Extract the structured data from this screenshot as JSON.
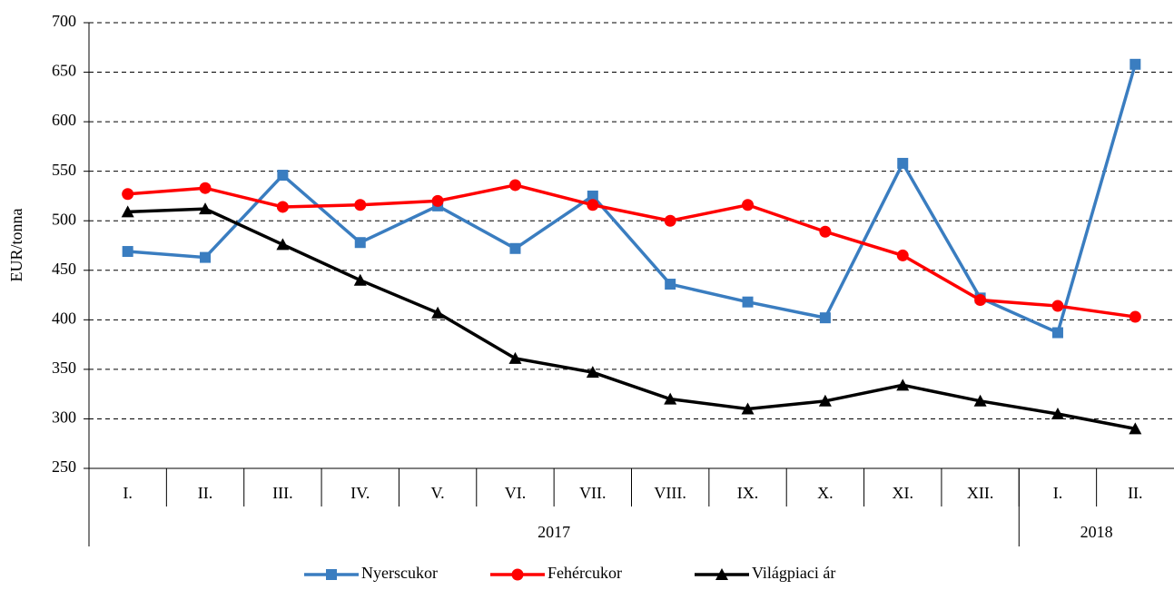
{
  "chart_data": {
    "type": "line",
    "y_label": "EUR/tonna",
    "categories": [
      "I.",
      "II.",
      "III.",
      "IV.",
      "V.",
      "VI.",
      "VII.",
      "VIII.",
      "IX.",
      "X.",
      "XI.",
      "XII.",
      "I.",
      "II."
    ],
    "year_groups": [
      {
        "label": "2017",
        "span": 12
      },
      {
        "label": "2018",
        "span": 2
      }
    ],
    "series": [
      {
        "name": "Nyerscukor",
        "color": "#3a7dc0",
        "marker": "square",
        "values": [
          469,
          463,
          546,
          478,
          515,
          472,
          525,
          436,
          418,
          402,
          558,
          422,
          387,
          658
        ]
      },
      {
        "name": "Fehércukor",
        "color": "#ff0000",
        "marker": "circle",
        "values": [
          527,
          533,
          514,
          516,
          520,
          536,
          516,
          500,
          516,
          489,
          465,
          420,
          414,
          403
        ]
      },
      {
        "name": "Világpiaci ár",
        "color": "#000000",
        "marker": "triangle",
        "values": [
          509,
          512,
          476,
          440,
          407,
          361,
          347,
          320,
          310,
          318,
          334,
          318,
          305,
          290
        ]
      }
    ],
    "ylim": [
      250,
      700
    ],
    "yticks": [
      250,
      300,
      350,
      400,
      450,
      500,
      550,
      600,
      650,
      700
    ],
    "grid": true,
    "legend": "bottom"
  }
}
